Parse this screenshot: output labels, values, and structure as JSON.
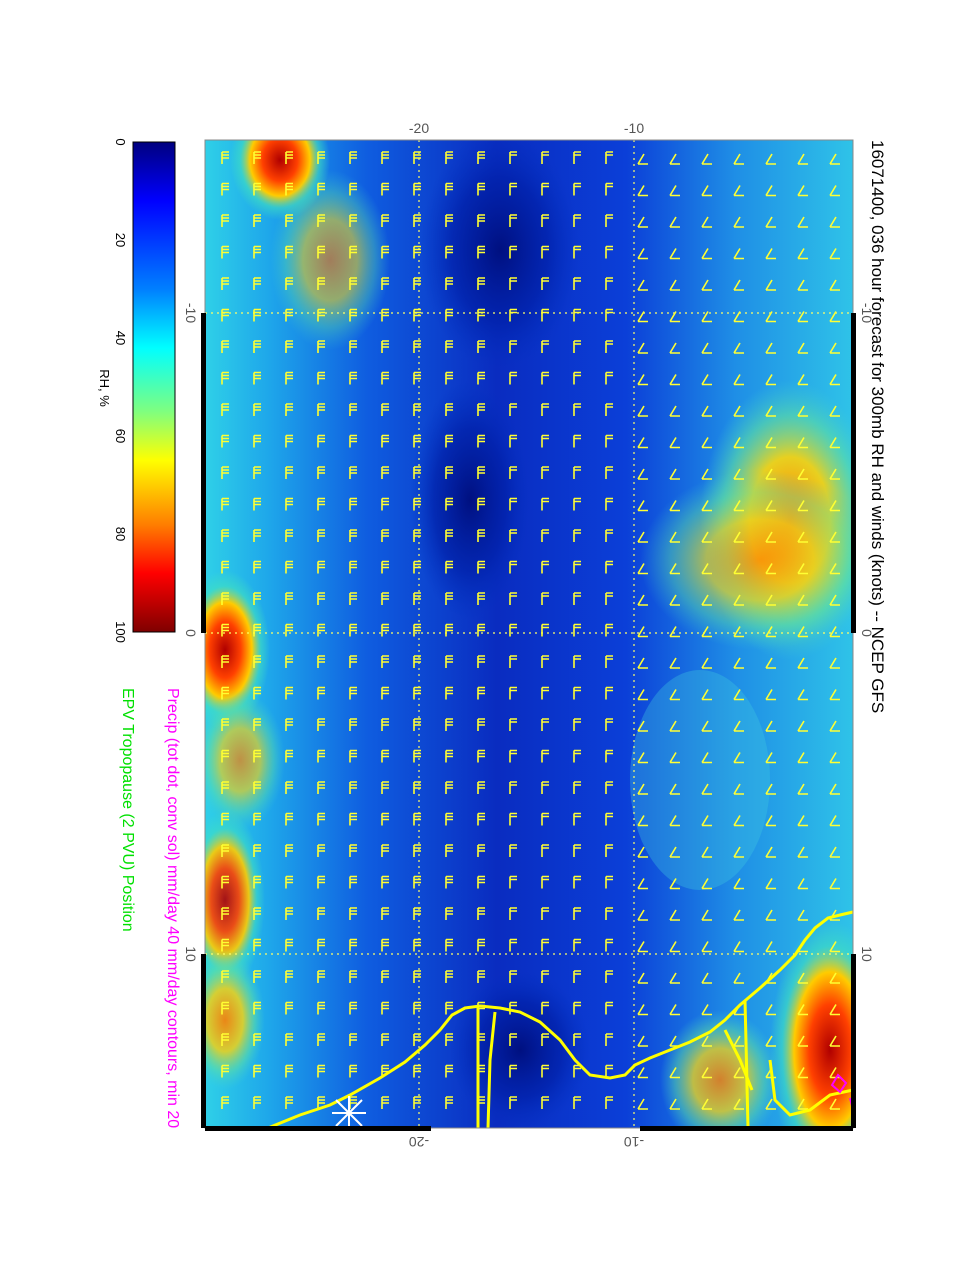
{
  "title": "16071400, 036 hour forecast for 300mb RH and winds (knots) -- NCEP GFS",
  "precip_note": "Precip (tot dot, conv sol) mm/day 40 mm/day contours, min 20",
  "tropopause_note": "EPV Tropopause (2 PVU) Position",
  "colorbar": {
    "label": "RH, %",
    "ticks": [
      "0",
      "20",
      "40",
      "60",
      "80",
      "100"
    ],
    "colors": [
      "#00007f",
      "#0000ff",
      "#007fff",
      "#00ffff",
      "#7fff7f",
      "#ffff00",
      "#ff7f00",
      "#ff0000",
      "#7f0000"
    ]
  },
  "axes": {
    "lat_top": [
      "-20",
      "-10"
    ],
    "lat_bottom": [
      "-20",
      "-10"
    ],
    "lon_left": [
      "-10",
      "0",
      "10"
    ],
    "lon_right": [
      "-10",
      "0",
      "10"
    ]
  },
  "colors": {
    "barbs": "#ffff33",
    "coast": "#ffff00",
    "precip_text": "#ff00ff",
    "tropopause_text": "#00e000"
  }
}
